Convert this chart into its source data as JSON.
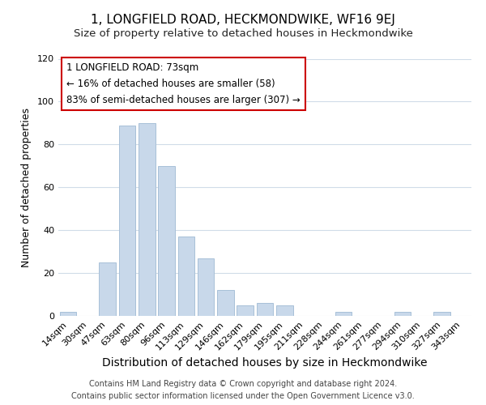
{
  "title": "1, LONGFIELD ROAD, HECKMONDWIKE, WF16 9EJ",
  "subtitle": "Size of property relative to detached houses in Heckmondwike",
  "xlabel": "Distribution of detached houses by size in Heckmondwike",
  "ylabel": "Number of detached properties",
  "categories": [
    "14sqm",
    "30sqm",
    "47sqm",
    "63sqm",
    "80sqm",
    "96sqm",
    "113sqm",
    "129sqm",
    "146sqm",
    "162sqm",
    "179sqm",
    "195sqm",
    "211sqm",
    "228sqm",
    "244sqm",
    "261sqm",
    "277sqm",
    "294sqm",
    "310sqm",
    "327sqm",
    "343sqm"
  ],
  "values": [
    2,
    0,
    25,
    89,
    90,
    70,
    37,
    27,
    12,
    5,
    6,
    5,
    0,
    0,
    2,
    0,
    0,
    2,
    0,
    2,
    0
  ],
  "bar_color": "#c8d8ea",
  "bar_edge_color": "#a8c0d8",
  "annotation_line1": "1 LONGFIELD ROAD: 73sqm",
  "annotation_line2": "← 16% of detached houses are smaller (58)",
  "annotation_line3": "83% of semi-detached houses are larger (307) →",
  "annotation_box_color": "#ffffff",
  "annotation_box_edge_color": "#cc0000",
  "ylim": [
    0,
    120
  ],
  "yticks": [
    0,
    20,
    40,
    60,
    80,
    100,
    120
  ],
  "footer_line1": "Contains HM Land Registry data © Crown copyright and database right 2024.",
  "footer_line2": "Contains public sector information licensed under the Open Government Licence v3.0.",
  "title_fontsize": 11,
  "subtitle_fontsize": 9.5,
  "xlabel_fontsize": 10,
  "ylabel_fontsize": 9,
  "tick_fontsize": 8,
  "annotation_fontsize": 8.5,
  "footer_fontsize": 7,
  "background_color": "#ffffff",
  "grid_color": "#d0dce8"
}
